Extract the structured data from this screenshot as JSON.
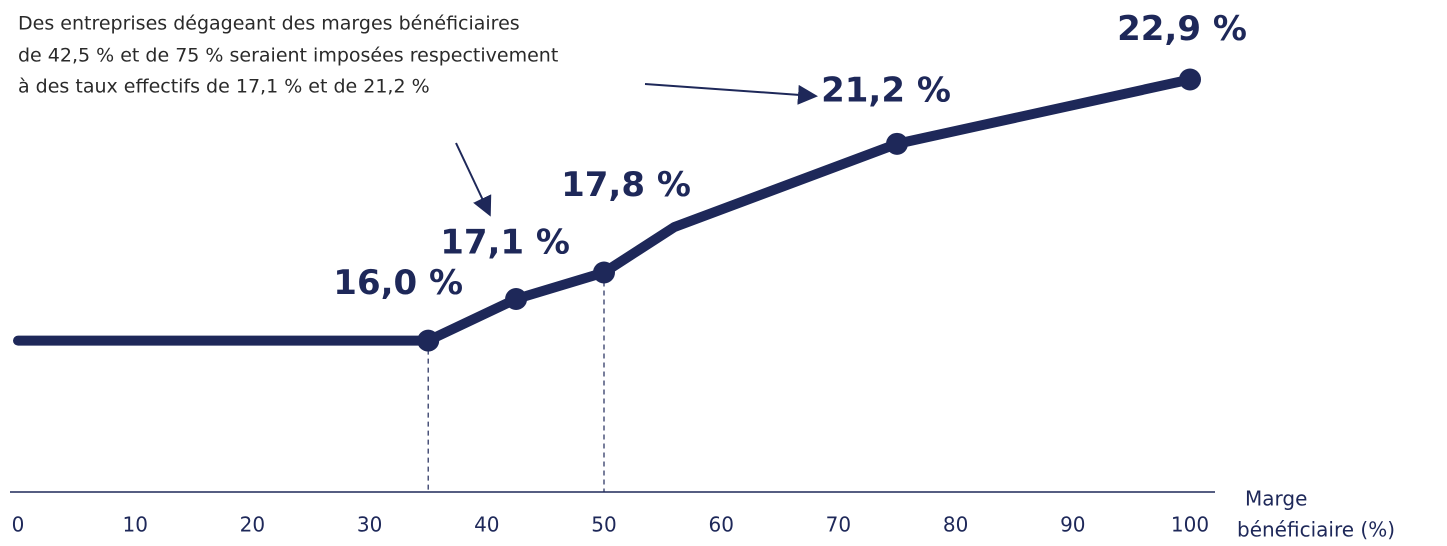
{
  "chart_data": {
    "type": "line",
    "annotation": [
      "Des entreprises dégageant des marges bénéficiaires",
      "de 42,5 % et de 75 % seraient imposées respectivement",
      "à des taux effectifs de 17,1 % et de 21,2 %"
    ],
    "xlabel": [
      "Marge",
      "bénéficiaire (%)"
    ],
    "x": [
      0,
      35,
      42.5,
      50,
      56,
      75,
      100
    ],
    "values": [
      16.0,
      16.0,
      17.1,
      17.8,
      19.0,
      21.2,
      22.9
    ],
    "value_labels": [
      null,
      "16,0 %",
      "17,1 %",
      "17,8 %",
      null,
      "21,2 %",
      "22,9 %"
    ],
    "color": "#1e2859",
    "xlim": [
      0,
      100
    ],
    "xticks": [
      0,
      10,
      20,
      30,
      40,
      50,
      60,
      70,
      80,
      90,
      100
    ],
    "ylim": [
      12,
      25
    ]
  }
}
